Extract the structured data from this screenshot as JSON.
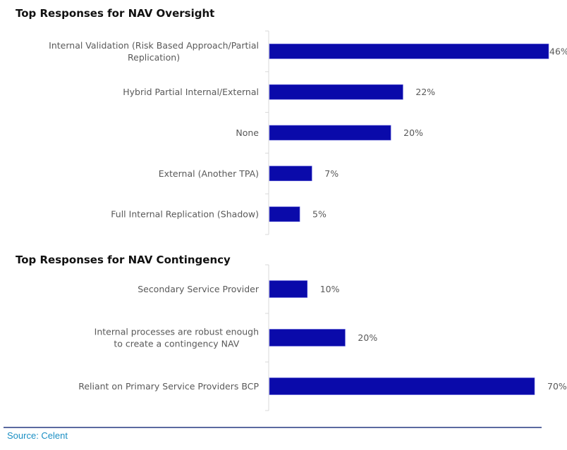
{
  "chart_data": [
    {
      "type": "bar",
      "orientation": "horizontal",
      "title": "Top Responses for NAV Oversight",
      "categories": [
        [
          "Internal Validation (Risk Based Approach/Partial",
          "Replication)"
        ],
        [
          "Hybrid Partial Internal/External"
        ],
        [
          "None"
        ],
        [
          "External (Another TPA)"
        ],
        [
          "Full Internal Replication (Shadow)"
        ]
      ],
      "values": [
        46,
        22,
        20,
        7,
        5
      ],
      "value_labels": [
        "46%",
        "22%",
        "20%",
        "7%",
        "5%"
      ],
      "unit": "%",
      "xlim": [
        0,
        46
      ],
      "grid": false,
      "bar_color": "#0a0aaa"
    },
    {
      "type": "bar",
      "orientation": "horizontal",
      "title": "Top Responses for NAV Contingency",
      "categories": [
        [
          "Secondary Service Provider"
        ],
        [
          "Internal processes are robust enough",
          "to create a contingency NAV"
        ],
        [
          "Reliant on Primary Service Providers BCP"
        ]
      ],
      "values": [
        10,
        20,
        70
      ],
      "value_labels": [
        "10%",
        "20%",
        "70%"
      ],
      "unit": "%",
      "xlim": [
        0,
        70
      ],
      "grid": false,
      "bar_color": "#0a0aaa"
    }
  ],
  "footer": {
    "source": "Source: Celent",
    "source_color": "#1b8fc4",
    "divider_color": "#5b6aa0"
  }
}
